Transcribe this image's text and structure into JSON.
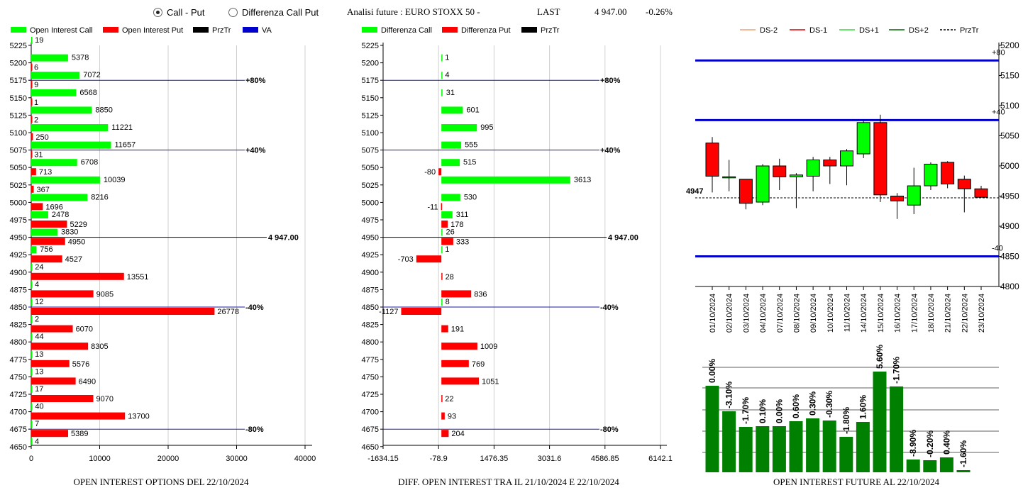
{
  "header": {
    "radio_call_put": "Call - Put",
    "radio_diff": "Differenza Call Put",
    "title": "Analisi future : EURO STOXX 50 -",
    "last_label": "LAST",
    "last_value": "4 947.00",
    "last_change": "-0.26%"
  },
  "colors": {
    "green": "#00ff00",
    "red": "#ff0000",
    "dark_green": "#008000",
    "blue": "#0000cc",
    "navy": "#1a1aa0"
  },
  "chart_data": [
    {
      "type": "bar",
      "orientation": "horizontal",
      "title": "OPEN INTEREST OPTIONS DEL 22/10/2024",
      "legend": [
        "Open Interest Call",
        "Open Interest Put",
        "PrzTr",
        "VA"
      ],
      "categories": [
        5225,
        5200,
        5175,
        5150,
        5125,
        5100,
        5075,
        5050,
        5025,
        5000,
        4975,
        4950,
        4925,
        4900,
        4875,
        4850,
        4825,
        4800,
        4775,
        4750,
        4725,
        4700,
        4675,
        4650
      ],
      "series": [
        {
          "name": "Open Interest Call",
          "values": [
            19,
            5378,
            7072,
            6568,
            8850,
            11221,
            11657,
            6708,
            10039,
            8216,
            2478,
            3830,
            756,
            24,
            4,
            12,
            2,
            44,
            13,
            13,
            17,
            40,
            7,
            4
          ]
        },
        {
          "name": "Open Interest Put",
          "values": [
            null,
            6,
            9,
            1,
            2,
            250,
            31,
            713,
            367,
            1696,
            5229,
            4950,
            4527,
            13551,
            9085,
            26778,
            6070,
            8305,
            5576,
            6490,
            9070,
            13700,
            5389,
            null
          ]
        }
      ],
      "xticks": [
        "0",
        "10000",
        "20000",
        "30000",
        "40000"
      ],
      "xlim": [
        0,
        40000
      ],
      "ref_lines": [
        {
          "strike": 5175,
          "label": "+80%"
        },
        {
          "strike": 5075,
          "label": "+40%"
        },
        {
          "strike": 4950,
          "label": "4 947.00"
        },
        {
          "strike": 4850,
          "label": "-40%"
        },
        {
          "strike": 4675,
          "label": "-80%"
        }
      ]
    },
    {
      "type": "bar",
      "orientation": "horizontal",
      "title": "DIFF. OPEN INTEREST TRA IL 21/10/2024 E 22/10/2024",
      "legend": [
        "Differenza Call",
        "Differenza Put",
        "PrzTr"
      ],
      "categories": [
        5225,
        5200,
        5175,
        5150,
        5125,
        5100,
        5075,
        5050,
        5025,
        5000,
        4975,
        4950,
        4925,
        4900,
        4875,
        4850,
        4825,
        4800,
        4775,
        4750,
        4725,
        4700,
        4675,
        4650
      ],
      "series": [
        {
          "name": "Differenza Call",
          "values": [
            null,
            1,
            4,
            31,
            601,
            995,
            555,
            515,
            3613,
            530,
            311,
            26,
            1,
            null,
            null,
            8,
            null,
            null,
            null,
            null,
            null,
            null,
            null,
            null
          ]
        },
        {
          "name": "Differenza Put",
          "values": [
            null,
            null,
            null,
            null,
            null,
            null,
            null,
            -80,
            null,
            -11,
            178,
            333,
            -703,
            28,
            836,
            -1127,
            191,
            1009,
            769,
            1051,
            22,
            93,
            204,
            null
          ]
        }
      ],
      "xticks": [
        "-1634.15",
        "-78.9",
        "1476.35",
        "3031.6",
        "4586.85",
        "6142.1"
      ],
      "xlim": [
        -1634.15,
        6142.1
      ],
      "ref_lines": [
        {
          "strike": 5175,
          "label": "+80%"
        },
        {
          "strike": 5075,
          "label": "+40%"
        },
        {
          "strike": 4950,
          "label": "4 947.00"
        },
        {
          "strike": 4850,
          "label": "-40%"
        },
        {
          "strike": 4675,
          "label": "-80%"
        }
      ]
    },
    {
      "type": "candlestick",
      "legend": [
        "DS-2",
        "DS-1",
        "DS+1",
        "DS+2",
        "PrzTr"
      ],
      "legend_colors": [
        "#f0a070",
        "#e00000",
        "#33dd33",
        "#006600",
        "#000000"
      ],
      "dates": [
        "01/10/2024",
        "02/10/2024",
        "03/10/2024",
        "04/10/2024",
        "07/10/2024",
        "08/10/2024",
        "09/10/2024",
        "10/10/2024",
        "11/10/2024",
        "14/10/2024",
        "15/10/2024",
        "16/10/2024",
        "17/10/2024",
        "18/10/2024",
        "21/10/2024",
        "22/10/2024",
        "23/10/2024"
      ],
      "candles": [
        {
          "o": 5038,
          "h": 5048,
          "l": 4956,
          "c": 4983
        },
        {
          "o": 4982,
          "h": 5010,
          "l": 4958,
          "c": 4982
        },
        {
          "o": 4978,
          "h": 4978,
          "l": 4928,
          "c": 4938
        },
        {
          "o": 4940,
          "h": 5003,
          "l": 4935,
          "c": 5000
        },
        {
          "o": 5000,
          "h": 5012,
          "l": 4960,
          "c": 4982
        },
        {
          "o": 4982,
          "h": 4988,
          "l": 4930,
          "c": 4985
        },
        {
          "o": 4983,
          "h": 5015,
          "l": 4958,
          "c": 5010
        },
        {
          "o": 5010,
          "h": 5015,
          "l": 4970,
          "c": 5000
        },
        {
          "o": 5000,
          "h": 5028,
          "l": 4968,
          "c": 5025
        },
        {
          "o": 5020,
          "h": 5075,
          "l": 5013,
          "c": 5072
        },
        {
          "o": 5072,
          "h": 5085,
          "l": 4940,
          "c": 4952
        },
        {
          "o": 4950,
          "h": 4955,
          "l": 4912,
          "c": 4942
        },
        {
          "o": 4935,
          "h": 4997,
          "l": 4920,
          "c": 4967
        },
        {
          "o": 4967,
          "h": 5006,
          "l": 4960,
          "c": 5003
        },
        {
          "o": 5006,
          "h": 5008,
          "l": 4963,
          "c": 4970
        },
        {
          "o": 4978,
          "h": 4984,
          "l": 4923,
          "c": 4962
        },
        {
          "o": 4962,
          "h": 4967,
          "l": 4948,
          "c": 4948
        }
      ],
      "ylim": [
        4800,
        5200
      ],
      "yticks": [
        "5200",
        "5150",
        "5100",
        "5050",
        "5000",
        "4950",
        "4900",
        "4850",
        "4800"
      ],
      "lines": [
        {
          "label": "+80",
          "value": 5175
        },
        {
          "label": "+40",
          "value": 5076
        },
        {
          "label": "-40",
          "value": 4850
        }
      ],
      "last_label": "4947",
      "last_value": 4947
    },
    {
      "type": "bar",
      "title": "OPEN INTEREST FUTURE AL 22/10/2024",
      "labels": [
        "0.00%",
        "-3.10%",
        "-1.70%",
        "0.10%",
        "0.00%",
        "0.60%",
        "0.30%",
        "-0.30%",
        "-1.80%",
        "1.60%",
        "5.60%",
        "-1.70%",
        "-8.90%",
        "-0.20%",
        "0.40%",
        "-1.60%"
      ],
      "values": [
        122,
        86,
        64,
        65,
        65,
        72,
        76,
        73,
        50,
        71,
        142,
        121,
        18,
        17,
        21,
        3
      ]
    }
  ]
}
